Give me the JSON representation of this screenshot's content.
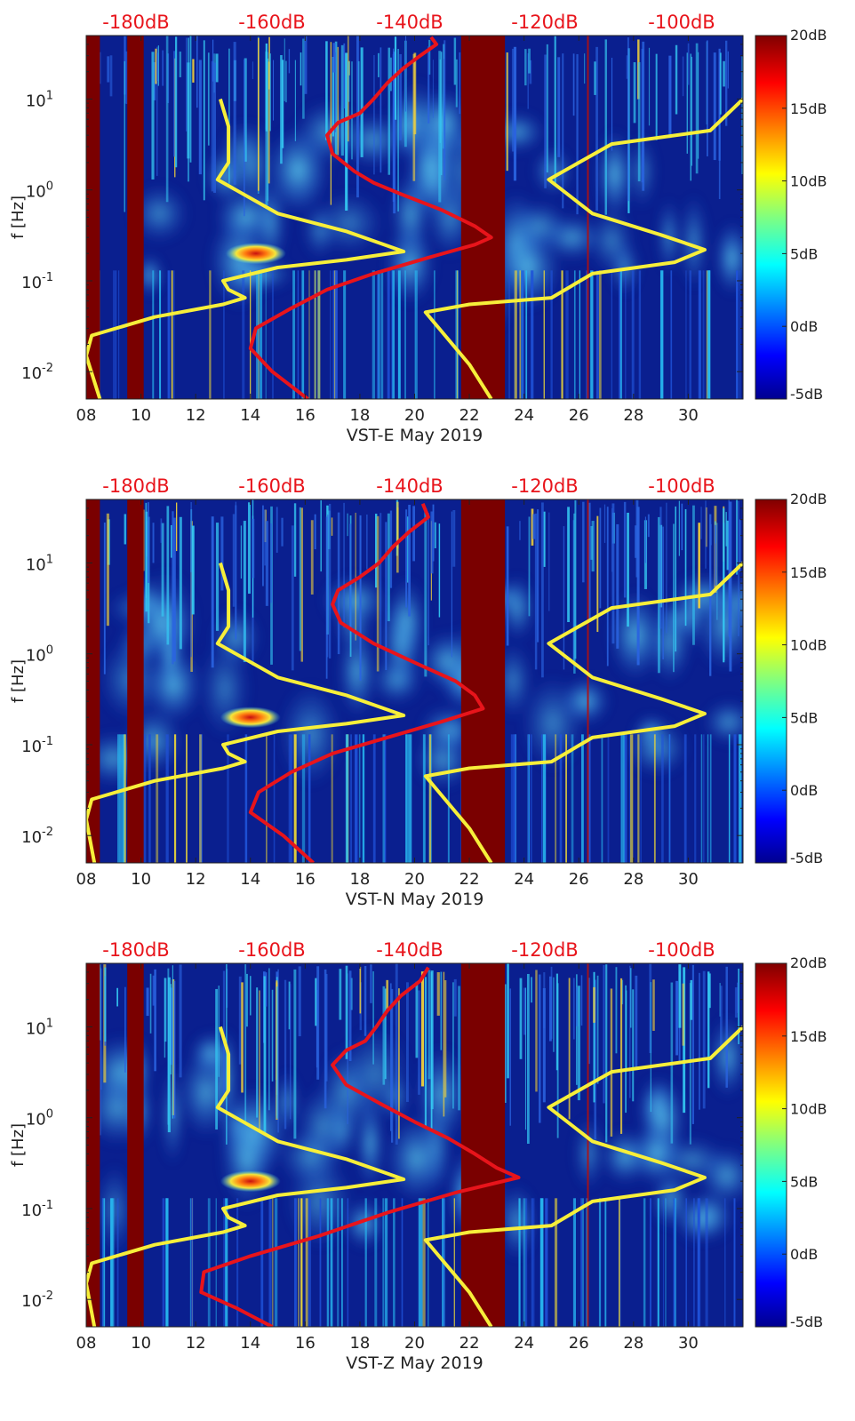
{
  "colors": {
    "background_low": "#0a1f8f",
    "curve_red": "#e8141b",
    "curve_yellow": "#f7ef3a",
    "top_label": "#e8141b",
    "tick_text": "#222222"
  },
  "colorbar": {
    "labels": [
      "20dB",
      "15dB",
      "10dB",
      "5dB",
      "0dB",
      "-5dB"
    ],
    "range": [
      -5,
      20
    ]
  },
  "chart_data": [
    {
      "type": "heatmap",
      "title": "",
      "xlabel": "VST-E May 2019",
      "ylabel": "f [Hz]",
      "x_tick_labels": [
        "08",
        "10",
        "12",
        "14",
        "16",
        "18",
        "20",
        "22",
        "24",
        "26",
        "28",
        "30"
      ],
      "y_tick_labels": [
        "10",
        "1",
        "0",
        "-1",
        "-2"
      ],
      "top_axis_labels": [
        "-180dB",
        "-160dB",
        "-140dB",
        "-120dB",
        "-100dB"
      ],
      "xlim": [
        8,
        32
      ],
      "ylim_hz": [
        0.005,
        50
      ],
      "y_scale": "log",
      "colorbar_range_db": [
        -5,
        20
      ],
      "dark_bands": [
        [
          8.0,
          8.5
        ],
        [
          9.5,
          10.1
        ],
        [
          21.7,
          23.3
        ]
      ],
      "hot_spot": {
        "x": 14.2,
        "f_hz": 0.2
      },
      "series": [
        {
          "name": "",
          "color": "red",
          "points": [
            [
              16.1,
              0.005
            ],
            [
              14.8,
              0.01
            ],
            [
              14.0,
              0.018
            ],
            [
              14.2,
              0.03
            ],
            [
              15.5,
              0.05
            ],
            [
              16.8,
              0.08
            ],
            [
              18.5,
              0.12
            ],
            [
              20.5,
              0.18
            ],
            [
              22.2,
              0.25
            ],
            [
              22.8,
              0.3
            ],
            [
              22.2,
              0.4
            ],
            [
              21.0,
              0.6
            ],
            [
              19.5,
              0.9
            ],
            [
              18.5,
              1.2
            ],
            [
              17.8,
              1.6
            ],
            [
              17.0,
              2.5
            ],
            [
              16.8,
              4
            ],
            [
              17.2,
              5.5
            ],
            [
              18.0,
              7
            ],
            [
              18.5,
              10
            ],
            [
              19.0,
              15
            ],
            [
              19.6,
              22
            ],
            [
              20.2,
              30
            ],
            [
              20.8,
              40
            ],
            [
              20.6,
              48
            ]
          ]
        },
        {
          "name": "",
          "color": "yellow",
          "points": [
            [
              8.5,
              0.005
            ],
            [
              8.0,
              0.015
            ],
            [
              8.2,
              0.025
            ],
            [
              10.5,
              0.04
            ],
            [
              13.0,
              0.055
            ],
            [
              13.8,
              0.065
            ],
            [
              13.2,
              0.08
            ],
            [
              13.0,
              0.1
            ],
            [
              15.0,
              0.14
            ],
            [
              17.5,
              0.17
            ],
            [
              19.6,
              0.21
            ],
            [
              17.5,
              0.35
            ],
            [
              15.0,
              0.55
            ],
            [
              12.8,
              1.3
            ],
            [
              13.2,
              2.0
            ],
            [
              13.2,
              5
            ],
            [
              12.9,
              10
            ]
          ],
          "points_b": [
            [
              22.8,
              0.005
            ],
            [
              22.0,
              0.012
            ],
            [
              20.4,
              0.045
            ],
            [
              22.0,
              0.055
            ],
            [
              25.0,
              0.065
            ],
            [
              26.5,
              0.12
            ],
            [
              29.5,
              0.16
            ],
            [
              30.6,
              0.22
            ],
            [
              29.0,
              0.32
            ],
            [
              26.5,
              0.55
            ],
            [
              24.9,
              1.3
            ],
            [
              27.2,
              3.2
            ],
            [
              30.8,
              4.5
            ],
            [
              32.0,
              10
            ]
          ]
        }
      ]
    },
    {
      "type": "heatmap",
      "title": "",
      "xlabel": "VST-N May 2019",
      "ylabel": "f [Hz]",
      "x_tick_labels": [
        "08",
        "10",
        "12",
        "14",
        "16",
        "18",
        "20",
        "22",
        "24",
        "26",
        "28",
        "30"
      ],
      "y_tick_labels": [
        "10",
        "1",
        "0",
        "-1",
        "-2"
      ],
      "top_axis_labels": [
        "-180dB",
        "-160dB",
        "-140dB",
        "-120dB",
        "-100dB"
      ],
      "xlim": [
        8,
        32
      ],
      "ylim_hz": [
        0.005,
        50
      ],
      "y_scale": "log",
      "colorbar_range_db": [
        -5,
        20
      ],
      "dark_bands": [
        [
          8.0,
          8.5
        ],
        [
          9.5,
          10.1
        ],
        [
          21.7,
          23.3
        ]
      ],
      "hot_spot": {
        "x": 14.0,
        "f_hz": 0.2
      },
      "series": [
        {
          "name": "",
          "color": "red",
          "points": [
            [
              16.3,
              0.005
            ],
            [
              15.2,
              0.01
            ],
            [
              14.0,
              0.018
            ],
            [
              14.3,
              0.03
            ],
            [
              15.5,
              0.05
            ],
            [
              17.0,
              0.08
            ],
            [
              19.0,
              0.12
            ],
            [
              21.0,
              0.18
            ],
            [
              22.5,
              0.25
            ],
            [
              22.2,
              0.35
            ],
            [
              21.5,
              0.5
            ],
            [
              20.0,
              0.8
            ],
            [
              18.5,
              1.3
            ],
            [
              17.3,
              2.2
            ],
            [
              17.0,
              3.5
            ],
            [
              17.2,
              5
            ],
            [
              18.0,
              7
            ],
            [
              18.7,
              10
            ],
            [
              19.2,
              15
            ],
            [
              19.8,
              22
            ],
            [
              20.5,
              32
            ],
            [
              20.3,
              45
            ]
          ]
        },
        {
          "name": "",
          "color": "yellow",
          "points": [
            [
              8.3,
              0.005
            ],
            [
              8.0,
              0.015
            ],
            [
              8.2,
              0.025
            ],
            [
              10.5,
              0.04
            ],
            [
              13.0,
              0.055
            ],
            [
              13.8,
              0.065
            ],
            [
              13.2,
              0.08
            ],
            [
              13.0,
              0.1
            ],
            [
              15.0,
              0.14
            ],
            [
              17.5,
              0.17
            ],
            [
              19.6,
              0.21
            ],
            [
              17.5,
              0.35
            ],
            [
              15.0,
              0.55
            ],
            [
              12.8,
              1.3
            ],
            [
              13.2,
              2.0
            ],
            [
              13.2,
              5
            ],
            [
              12.9,
              10
            ]
          ],
          "points_b": [
            [
              22.8,
              0.005
            ],
            [
              22.0,
              0.012
            ],
            [
              20.4,
              0.045
            ],
            [
              22.0,
              0.055
            ],
            [
              25.0,
              0.065
            ],
            [
              26.5,
              0.12
            ],
            [
              29.5,
              0.16
            ],
            [
              30.6,
              0.22
            ],
            [
              29.0,
              0.32
            ],
            [
              26.5,
              0.55
            ],
            [
              24.9,
              1.3
            ],
            [
              27.2,
              3.2
            ],
            [
              30.8,
              4.5
            ],
            [
              32.0,
              10
            ]
          ]
        }
      ]
    },
    {
      "type": "heatmap",
      "title": "",
      "xlabel": "VST-Z May 2019",
      "ylabel": "f [Hz]",
      "x_tick_labels": [
        "08",
        "10",
        "12",
        "14",
        "16",
        "18",
        "20",
        "22",
        "24",
        "26",
        "28",
        "30"
      ],
      "y_tick_labels": [
        "10",
        "1",
        "0",
        "-1",
        "-2"
      ],
      "top_axis_labels": [
        "-180dB",
        "-160dB",
        "-140dB",
        "-120dB",
        "-100dB"
      ],
      "xlim": [
        8,
        32
      ],
      "ylim_hz": [
        0.005,
        50
      ],
      "y_scale": "log",
      "colorbar_range_db": [
        -5,
        20
      ],
      "dark_bands": [
        [
          8.0,
          8.5
        ],
        [
          9.5,
          10.1
        ],
        [
          21.7,
          23.3
        ]
      ],
      "hot_spot": {
        "x": 14.0,
        "f_hz": 0.2
      },
      "series": [
        {
          "name": "",
          "color": "red",
          "points": [
            [
              14.8,
              0.005
            ],
            [
              13.5,
              0.008
            ],
            [
              12.2,
              0.012
            ],
            [
              12.3,
              0.02
            ],
            [
              14.0,
              0.03
            ],
            [
              16.5,
              0.05
            ],
            [
              19.0,
              0.09
            ],
            [
              21.5,
              0.15
            ],
            [
              23.8,
              0.22
            ],
            [
              23.0,
              0.28
            ],
            [
              22.2,
              0.4
            ],
            [
              21.2,
              0.6
            ],
            [
              20.0,
              0.9
            ],
            [
              18.8,
              1.4
            ],
            [
              17.5,
              2.3
            ],
            [
              17.0,
              3.8
            ],
            [
              17.5,
              5.5
            ],
            [
              18.2,
              7
            ],
            [
              18.6,
              10
            ],
            [
              19.0,
              15
            ],
            [
              19.5,
              22
            ],
            [
              20.2,
              32
            ],
            [
              20.5,
              45
            ]
          ]
        },
        {
          "name": "",
          "color": "yellow",
          "points": [
            [
              8.3,
              0.005
            ],
            [
              8.0,
              0.015
            ],
            [
              8.2,
              0.025
            ],
            [
              10.5,
              0.04
            ],
            [
              13.0,
              0.055
            ],
            [
              13.8,
              0.065
            ],
            [
              13.2,
              0.08
            ],
            [
              13.0,
              0.1
            ],
            [
              15.0,
              0.14
            ],
            [
              17.5,
              0.17
            ],
            [
              19.6,
              0.21
            ],
            [
              17.5,
              0.35
            ],
            [
              15.0,
              0.55
            ],
            [
              12.8,
              1.3
            ],
            [
              13.2,
              2.0
            ],
            [
              13.2,
              5
            ],
            [
              12.9,
              10
            ]
          ],
          "points_b": [
            [
              22.8,
              0.005
            ],
            [
              22.0,
              0.012
            ],
            [
              20.4,
              0.045
            ],
            [
              22.0,
              0.055
            ],
            [
              25.0,
              0.065
            ],
            [
              26.5,
              0.12
            ],
            [
              29.5,
              0.16
            ],
            [
              30.6,
              0.22
            ],
            [
              29.0,
              0.32
            ],
            [
              26.5,
              0.55
            ],
            [
              24.9,
              1.3
            ],
            [
              27.2,
              3.2
            ],
            [
              30.8,
              4.5
            ],
            [
              32.0,
              10
            ]
          ]
        }
      ]
    }
  ]
}
